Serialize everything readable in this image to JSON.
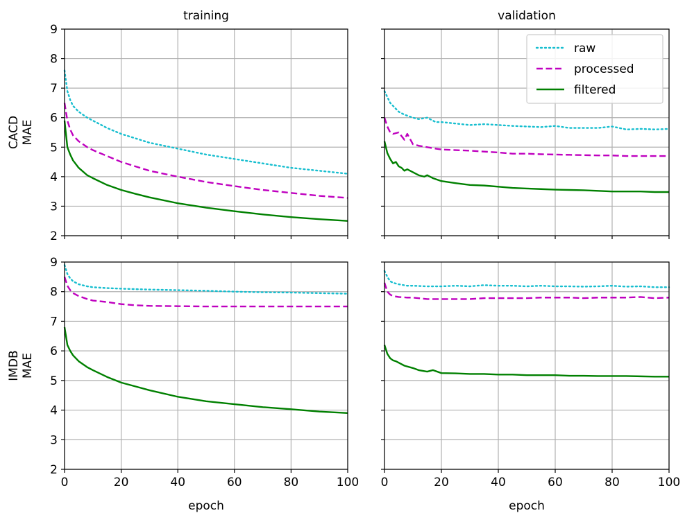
{
  "chart_data": [
    {
      "type": "line",
      "title": "training",
      "xlabel": "",
      "ylabel": "CACD\nMAE",
      "xlim": [
        0,
        100
      ],
      "ylim": [
        2,
        9
      ],
      "xticks": [
        0,
        20,
        40,
        60,
        80,
        100
      ],
      "yticks": [
        2,
        3,
        4,
        5,
        6,
        7,
        8,
        9
      ],
      "grid": true,
      "series": [
        {
          "name": "raw",
          "color": "#17becf",
          "style": "dotted",
          "x": [
            0,
            1,
            2,
            3,
            5,
            8,
            10,
            15,
            20,
            25,
            30,
            40,
            50,
            60,
            70,
            80,
            90,
            100
          ],
          "y": [
            7.6,
            6.9,
            6.6,
            6.4,
            6.2,
            6.0,
            5.9,
            5.65,
            5.45,
            5.3,
            5.15,
            4.95,
            4.75,
            4.6,
            4.45,
            4.3,
            4.2,
            4.1
          ]
        },
        {
          "name": "processed",
          "color": "#bf00bf",
          "style": "dashed",
          "x": [
            0,
            1,
            2,
            3,
            5,
            8,
            10,
            15,
            20,
            25,
            30,
            40,
            50,
            60,
            70,
            80,
            90,
            100
          ],
          "y": [
            6.5,
            5.9,
            5.6,
            5.4,
            5.2,
            5.0,
            4.9,
            4.7,
            4.5,
            4.35,
            4.2,
            4.0,
            3.82,
            3.68,
            3.55,
            3.45,
            3.35,
            3.28
          ]
        },
        {
          "name": "filtered",
          "color": "#008000",
          "style": "solid",
          "x": [
            0,
            1,
            2,
            3,
            5,
            8,
            10,
            15,
            20,
            25,
            30,
            40,
            50,
            60,
            70,
            80,
            90,
            100
          ],
          "y": [
            5.9,
            5.0,
            4.75,
            4.55,
            4.3,
            4.05,
            3.95,
            3.72,
            3.55,
            3.42,
            3.3,
            3.1,
            2.95,
            2.83,
            2.72,
            2.63,
            2.56,
            2.5
          ]
        }
      ]
    },
    {
      "type": "line",
      "title": "validation",
      "xlabel": "",
      "ylabel": "",
      "xlim": [
        0,
        100
      ],
      "ylim": [
        2,
        9
      ],
      "xticks": [
        0,
        20,
        40,
        60,
        80,
        100
      ],
      "yticks": [
        2,
        3,
        4,
        5,
        6,
        7,
        8,
        9
      ],
      "grid": true,
      "legend": {
        "position": "top-right",
        "entries": [
          "raw",
          "processed",
          "filtered"
        ]
      },
      "series": [
        {
          "name": "raw",
          "color": "#17becf",
          "style": "dotted",
          "x": [
            0,
            1,
            2,
            3,
            5,
            7,
            10,
            12,
            15,
            18,
            20,
            25,
            30,
            35,
            40,
            45,
            50,
            55,
            60,
            65,
            70,
            75,
            80,
            85,
            90,
            95,
            100
          ],
          "y": [
            6.9,
            6.7,
            6.5,
            6.4,
            6.2,
            6.1,
            6.0,
            5.95,
            6.0,
            5.85,
            5.85,
            5.8,
            5.75,
            5.78,
            5.75,
            5.72,
            5.7,
            5.68,
            5.72,
            5.65,
            5.65,
            5.65,
            5.7,
            5.6,
            5.62,
            5.6,
            5.62
          ]
        },
        {
          "name": "processed",
          "color": "#bf00bf",
          "style": "dashed",
          "x": [
            0,
            1,
            2,
            3,
            5,
            7,
            8,
            10,
            12,
            15,
            18,
            20,
            25,
            30,
            35,
            40,
            45,
            50,
            55,
            60,
            65,
            70,
            75,
            80,
            85,
            90,
            95,
            100
          ],
          "y": [
            6.0,
            5.7,
            5.5,
            5.45,
            5.5,
            5.25,
            5.45,
            5.1,
            5.05,
            5.0,
            4.95,
            4.92,
            4.9,
            4.88,
            4.85,
            4.82,
            4.78,
            4.78,
            4.76,
            4.75,
            4.74,
            4.73,
            4.72,
            4.72,
            4.7,
            4.7,
            4.7,
            4.7
          ]
        },
        {
          "name": "filtered",
          "color": "#008000",
          "style": "solid",
          "x": [
            0,
            1,
            2,
            3,
            4,
            5,
            6,
            7,
            8,
            10,
            12,
            14,
            15,
            17,
            20,
            25,
            30,
            35,
            40,
            45,
            50,
            55,
            60,
            65,
            70,
            75,
            80,
            85,
            90,
            95,
            100
          ],
          "y": [
            5.2,
            4.8,
            4.6,
            4.45,
            4.5,
            4.35,
            4.3,
            4.2,
            4.25,
            4.15,
            4.05,
            4.0,
            4.05,
            3.95,
            3.85,
            3.78,
            3.72,
            3.7,
            3.66,
            3.62,
            3.6,
            3.58,
            3.56,
            3.55,
            3.54,
            3.52,
            3.5,
            3.5,
            3.5,
            3.48,
            3.48
          ]
        }
      ]
    },
    {
      "type": "line",
      "title": "",
      "xlabel": "epoch",
      "ylabel": "IMDB\nMAE",
      "xlim": [
        0,
        100
      ],
      "ylim": [
        2,
        9
      ],
      "xticks": [
        0,
        20,
        40,
        60,
        80,
        100
      ],
      "yticks": [
        2,
        3,
        4,
        5,
        6,
        7,
        8,
        9
      ],
      "grid": true,
      "series": [
        {
          "name": "raw",
          "color": "#17becf",
          "style": "dotted",
          "x": [
            0,
            1,
            2,
            3,
            5,
            8,
            10,
            15,
            20,
            30,
            40,
            50,
            60,
            70,
            80,
            90,
            100
          ],
          "y": [
            8.9,
            8.6,
            8.45,
            8.35,
            8.25,
            8.18,
            8.15,
            8.12,
            8.1,
            8.07,
            8.05,
            8.03,
            8.0,
            7.98,
            7.97,
            7.95,
            7.93
          ]
        },
        {
          "name": "processed",
          "color": "#bf00bf",
          "style": "dashed",
          "x": [
            0,
            1,
            2,
            3,
            5,
            8,
            10,
            15,
            20,
            25,
            30,
            40,
            50,
            60,
            70,
            80,
            90,
            100
          ],
          "y": [
            8.5,
            8.2,
            8.05,
            7.95,
            7.85,
            7.75,
            7.7,
            7.65,
            7.58,
            7.54,
            7.52,
            7.51,
            7.5,
            7.5,
            7.5,
            7.5,
            7.5,
            7.5
          ]
        },
        {
          "name": "filtered",
          "color": "#008000",
          "style": "solid",
          "x": [
            0,
            1,
            2,
            3,
            5,
            8,
            10,
            15,
            20,
            25,
            30,
            40,
            50,
            60,
            70,
            80,
            90,
            100
          ],
          "y": [
            6.8,
            6.2,
            6.0,
            5.85,
            5.65,
            5.45,
            5.35,
            5.12,
            4.93,
            4.8,
            4.67,
            4.45,
            4.3,
            4.2,
            4.1,
            4.03,
            3.95,
            3.9
          ]
        }
      ]
    },
    {
      "type": "line",
      "title": "",
      "xlabel": "epoch",
      "ylabel": "",
      "xlim": [
        0,
        100
      ],
      "ylim": [
        2,
        9
      ],
      "xticks": [
        0,
        20,
        40,
        60,
        80,
        100
      ],
      "yticks": [
        2,
        3,
        4,
        5,
        6,
        7,
        8,
        9
      ],
      "grid": true,
      "series": [
        {
          "name": "raw",
          "color": "#17becf",
          "style": "dotted",
          "x": [
            0,
            1,
            2,
            3,
            5,
            8,
            10,
            15,
            20,
            25,
            30,
            35,
            40,
            45,
            50,
            55,
            60,
            65,
            70,
            75,
            80,
            85,
            90,
            95,
            100
          ],
          "y": [
            8.7,
            8.5,
            8.35,
            8.3,
            8.25,
            8.2,
            8.2,
            8.18,
            8.18,
            8.2,
            8.18,
            8.22,
            8.2,
            8.2,
            8.18,
            8.2,
            8.18,
            8.18,
            8.17,
            8.18,
            8.2,
            8.17,
            8.18,
            8.15,
            8.15
          ]
        },
        {
          "name": "processed",
          "color": "#bf00bf",
          "style": "dashed",
          "x": [
            0,
            1,
            2,
            3,
            5,
            8,
            10,
            15,
            20,
            25,
            30,
            35,
            40,
            45,
            50,
            55,
            60,
            65,
            70,
            75,
            80,
            85,
            90,
            95,
            100
          ],
          "y": [
            8.3,
            8.0,
            7.9,
            7.85,
            7.82,
            7.8,
            7.8,
            7.75,
            7.75,
            7.75,
            7.75,
            7.78,
            7.78,
            7.78,
            7.78,
            7.8,
            7.8,
            7.8,
            7.78,
            7.8,
            7.8,
            7.8,
            7.82,
            7.78,
            7.8
          ]
        },
        {
          "name": "filtered",
          "color": "#008000",
          "style": "solid",
          "x": [
            0,
            1,
            2,
            3,
            4,
            5,
            7,
            10,
            12,
            15,
            17,
            20,
            25,
            30,
            35,
            40,
            45,
            50,
            55,
            60,
            65,
            70,
            75,
            80,
            85,
            90,
            95,
            100
          ],
          "y": [
            6.2,
            5.9,
            5.75,
            5.68,
            5.65,
            5.6,
            5.5,
            5.42,
            5.35,
            5.3,
            5.35,
            5.25,
            5.24,
            5.22,
            5.22,
            5.2,
            5.2,
            5.18,
            5.18,
            5.18,
            5.16,
            5.16,
            5.15,
            5.15,
            5.15,
            5.14,
            5.13,
            5.13
          ]
        }
      ]
    }
  ]
}
